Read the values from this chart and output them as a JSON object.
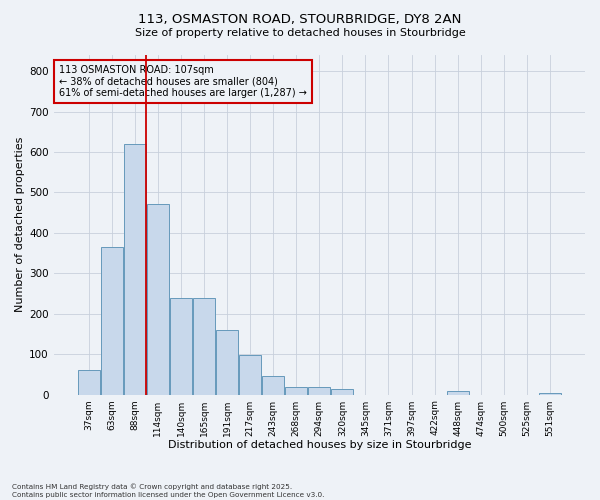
{
  "title_line1": "113, OSMASTON ROAD, STOURBRIDGE, DY8 2AN",
  "title_line2": "Size of property relative to detached houses in Stourbridge",
  "xlabel": "Distribution of detached houses by size in Stourbridge",
  "ylabel": "Number of detached properties",
  "categories": [
    "37sqm",
    "63sqm",
    "88sqm",
    "114sqm",
    "140sqm",
    "165sqm",
    "191sqm",
    "217sqm",
    "243sqm",
    "268sqm",
    "294sqm",
    "320sqm",
    "345sqm",
    "371sqm",
    "397sqm",
    "422sqm",
    "448sqm",
    "474sqm",
    "500sqm",
    "525sqm",
    "551sqm"
  ],
  "values": [
    60,
    365,
    620,
    472,
    238,
    238,
    160,
    98,
    47,
    20,
    18,
    13,
    0,
    0,
    0,
    0,
    8,
    0,
    0,
    0,
    5
  ],
  "bar_color": "#c8d8eb",
  "bar_edge_color": "#6699bb",
  "grid_color": "#c8d0dc",
  "vline_color": "#cc0000",
  "annotation_box_color": "#cc0000",
  "annotation_text_line1": "113 OSMASTON ROAD: 107sqm",
  "annotation_text_line2": "← 38% of detached houses are smaller (804)",
  "annotation_text_line3": "61% of semi-detached houses are larger (1,287) →",
  "footnote_line1": "Contains HM Land Registry data © Crown copyright and database right 2025.",
  "footnote_line2": "Contains public sector information licensed under the Open Government Licence v3.0.",
  "background_color": "#eef2f7",
  "ylim": [
    0,
    840
  ],
  "yticks": [
    0,
    100,
    200,
    300,
    400,
    500,
    600,
    700,
    800
  ]
}
